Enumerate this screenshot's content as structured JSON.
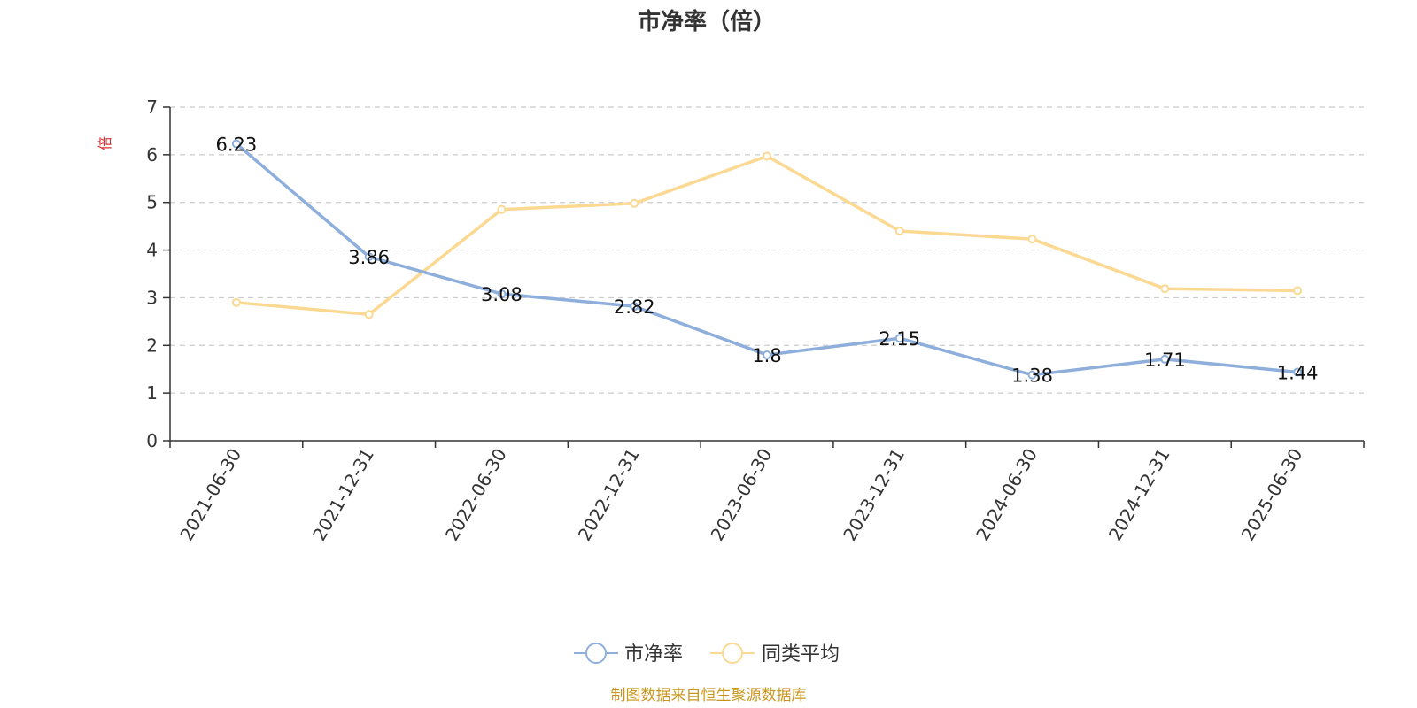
{
  "chart_data": {
    "type": "line",
    "title": "市净率（倍）",
    "ylabel": "倍",
    "xlabel": "",
    "categories": [
      "2021-06-30",
      "2021-12-31",
      "2022-06-30",
      "2022-12-31",
      "2023-06-30",
      "2023-12-31",
      "2024-06-30",
      "2024-12-31",
      "2025-06-30"
    ],
    "ylim": [
      0,
      7
    ],
    "yticks": [
      0,
      1,
      2,
      3,
      4,
      5,
      6,
      7
    ],
    "grid": true,
    "legend_position": "bottom-center",
    "series": [
      {
        "name": "市净率",
        "color": "#8eaedb",
        "values": [
          6.23,
          3.86,
          3.08,
          2.82,
          1.8,
          2.15,
          1.38,
          1.71,
          1.44
        ],
        "labels": [
          "6.23",
          "3.86",
          "3.08",
          "2.82",
          "1.8",
          "2.15",
          "1.38",
          "1.71",
          "1.44"
        ]
      },
      {
        "name": "同类平均",
        "color": "#fbd992",
        "values": [
          2.9,
          2.65,
          4.85,
          4.98,
          5.97,
          4.4,
          4.23,
          3.19,
          3.15
        ]
      }
    ]
  },
  "footer": {
    "source": "制图数据来自恒生聚源数据库"
  }
}
